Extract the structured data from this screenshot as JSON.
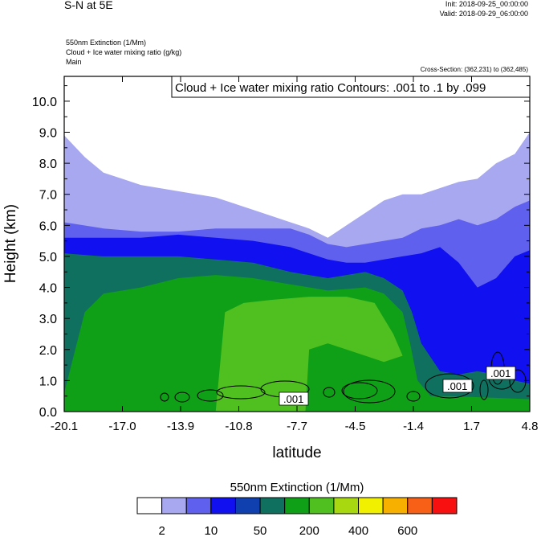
{
  "header": {
    "title": "S-N at 5E",
    "init": "Init: 2018-09-25_00:00:00",
    "valid": "Valid: 2018-09-29_06:00:00",
    "fields": [
      "550nm Extinction   (1/Mm)",
      "Cloud + Ice water mixing ratio   (g/kg)",
      "Main"
    ],
    "cross_section": "Cross-Section: (362,231) to (362,485)"
  },
  "chart_data": {
    "type": "heatmap",
    "title": "S-N at 5E",
    "xlabel": "latitude",
    "ylabel": "Height (km)",
    "xlim": [
      -20.1,
      4.8
    ],
    "ylim": [
      0.0,
      10.8
    ],
    "x_ticks": [
      "-20.1",
      "-17.0",
      "-13.9",
      "-10.8",
      "-7.7",
      "-4.5",
      "-1.4",
      "1.7",
      "4.8"
    ],
    "y_ticks": [
      "0.0",
      "1.0",
      "2.0",
      "3.0",
      "4.0",
      "5.0",
      "6.0",
      "7.0",
      "8.0",
      "9.0",
      "10.0"
    ],
    "contour_legend": "Cloud + Ice water mixing ratio Contours: .001 to .1 by .099",
    "contour_labels": [
      ".001",
      ".001",
      ".001"
    ],
    "colorbar": {
      "title": "550nm Extinction  (1/Mm)",
      "colors": [
        "#ffffff",
        "#a8a8f0",
        "#6060ee",
        "#1010f0",
        "#1040b0",
        "#107060",
        "#10a018",
        "#50c020",
        "#a8d810",
        "#f0f000",
        "#f8b000",
        "#f86018",
        "#f81010"
      ],
      "tick_labels": [
        "2",
        "10",
        "50",
        "200",
        "400",
        "600"
      ]
    },
    "bands": [
      {
        "name": "gt2",
        "color": "#a8a8f0",
        "top": [
          [
            -20.1,
            8.9
          ],
          [
            -19.0,
            8.2
          ],
          [
            -18.0,
            7.7
          ],
          [
            -17.0,
            7.5
          ],
          [
            -16.0,
            7.3
          ],
          [
            -15.0,
            7.2
          ],
          [
            -14.0,
            7.1
          ],
          [
            -13.0,
            7.0
          ],
          [
            -12.0,
            6.9
          ],
          [
            -11.0,
            6.7
          ],
          [
            -10.0,
            6.5
          ],
          [
            -9.0,
            6.3
          ],
          [
            -8.0,
            6.1
          ],
          [
            -7.0,
            5.9
          ],
          [
            -6.0,
            5.6
          ],
          [
            -5.0,
            6.0
          ],
          [
            -4.0,
            6.4
          ],
          [
            -3.0,
            6.8
          ],
          [
            -2.0,
            7.0
          ],
          [
            -1.0,
            7.0
          ],
          [
            0.0,
            7.2
          ],
          [
            1.0,
            7.4
          ],
          [
            2.0,
            7.5
          ],
          [
            3.0,
            8.0
          ],
          [
            4.0,
            8.3
          ],
          [
            4.8,
            9.0
          ]
        ]
      },
      {
        "name": "gt10",
        "color": "#6060ee",
        "top": [
          [
            -20.1,
            6.1
          ],
          [
            -18.0,
            5.9
          ],
          [
            -16.0,
            5.8
          ],
          [
            -14.0,
            5.8
          ],
          [
            -12.0,
            5.9
          ],
          [
            -10.0,
            5.9
          ],
          [
            -8.0,
            5.9
          ],
          [
            -7.0,
            5.7
          ],
          [
            -6.0,
            5.4
          ],
          [
            -5.0,
            5.3
          ],
          [
            -4.0,
            5.4
          ],
          [
            -3.0,
            5.5
          ],
          [
            -2.0,
            5.6
          ],
          [
            -1.0,
            5.9
          ],
          [
            0.0,
            6.0
          ],
          [
            1.0,
            6.2
          ],
          [
            2.0,
            6.0
          ],
          [
            3.0,
            6.2
          ],
          [
            4.0,
            6.6
          ],
          [
            4.8,
            6.8
          ]
        ]
      },
      {
        "name": "gt50",
        "color": "#1010f0",
        "top": [
          [
            -20.1,
            5.6
          ],
          [
            -18.0,
            5.6
          ],
          [
            -16.0,
            5.6
          ],
          [
            -14.0,
            5.7
          ],
          [
            -12.0,
            5.6
          ],
          [
            -10.0,
            5.5
          ],
          [
            -8.0,
            5.3
          ],
          [
            -7.0,
            5.1
          ],
          [
            -6.0,
            4.9
          ],
          [
            -5.0,
            4.8
          ],
          [
            -4.0,
            4.8
          ],
          [
            -3.0,
            4.9
          ],
          [
            -2.0,
            5.0
          ],
          [
            -1.0,
            5.1
          ],
          [
            0.0,
            5.3
          ],
          [
            1.0,
            4.8
          ],
          [
            2.0,
            4.0
          ],
          [
            3.0,
            4.3
          ],
          [
            4.0,
            5.0
          ],
          [
            4.8,
            5.2
          ]
        ]
      },
      {
        "name": "gt200",
        "color": "#107060",
        "top": [
          [
            -20.1,
            5.1
          ],
          [
            -18.0,
            5.0
          ],
          [
            -16.0,
            5.0
          ],
          [
            -14.0,
            5.0
          ],
          [
            -12.0,
            4.9
          ],
          [
            -10.0,
            4.8
          ],
          [
            -8.0,
            4.5
          ],
          [
            -7.0,
            4.4
          ],
          [
            -6.0,
            4.3
          ],
          [
            -5.0,
            4.4
          ],
          [
            -4.0,
            4.5
          ],
          [
            -3.0,
            4.3
          ],
          [
            -2.0,
            3.9
          ],
          [
            -1.5,
            3.2
          ],
          [
            -1.0,
            2.2
          ],
          [
            0.0,
            1.3
          ],
          [
            1.0,
            1.2
          ],
          [
            2.0,
            1.3
          ],
          [
            3.0,
            1.2
          ],
          [
            4.0,
            1.0
          ],
          [
            4.8,
            0.9
          ]
        ]
      },
      {
        "name": "gt400",
        "color": "#10a018",
        "top": [
          [
            -20.1,
            0.6
          ],
          [
            -19.0,
            3.2
          ],
          [
            -18.0,
            3.8
          ],
          [
            -16.0,
            4.0
          ],
          [
            -14.0,
            4.3
          ],
          [
            -12.0,
            4.4
          ],
          [
            -10.0,
            4.3
          ],
          [
            -8.0,
            4.1
          ],
          [
            -6.0,
            3.9
          ],
          [
            -4.0,
            4.0
          ],
          [
            -3.0,
            3.8
          ],
          [
            -2.0,
            3.2
          ],
          [
            -1.6,
            2.2
          ],
          [
            -1.2,
            1.0
          ],
          [
            -0.5,
            0.5
          ],
          [
            0.5,
            0.5
          ],
          [
            4.8,
            0.4
          ]
        ]
      },
      {
        "name": "gt600",
        "color": "#50c020",
        "top": [
          [
            -20.1,
            0.0
          ],
          [
            -12.0,
            0.0
          ],
          [
            -11.5,
            3.2
          ],
          [
            -10.5,
            3.5
          ],
          [
            -9.0,
            3.6
          ],
          [
            -7.0,
            3.7
          ],
          [
            -5.0,
            3.7
          ],
          [
            -3.5,
            3.5
          ],
          [
            -2.5,
            2.5
          ],
          [
            -2.0,
            1.8
          ],
          [
            -3.0,
            1.6
          ],
          [
            -5.0,
            2.0
          ],
          [
            -6.0,
            2.2
          ],
          [
            -7.0,
            2.0
          ],
          [
            -7.2,
            0.0
          ],
          [
            4.8,
            0.0
          ]
        ]
      }
    ]
  }
}
